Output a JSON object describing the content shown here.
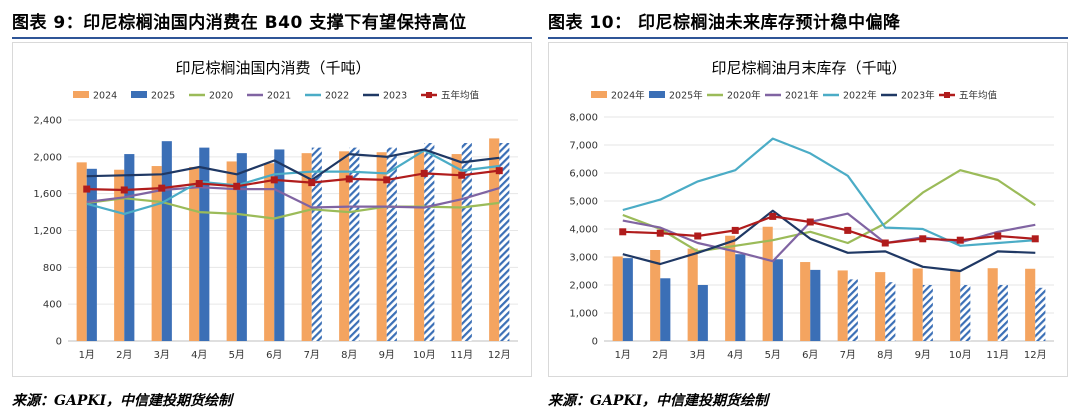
{
  "left": {
    "figure_title": "图表 9：印尼棕榈油国内消费在 B40 支撑下有望保持高位",
    "source": "来源：GAPKI，中信建投期货绘制"
  },
  "right": {
    "figure_title": "图表 10：  印尼棕榈油未来库存预计稳中偏降",
    "source": "来源：GAPKI，中信建投期货绘制"
  },
  "colors": {
    "title_rule": "#2f5597",
    "orange": "#f4a460",
    "blue": "#3b6fb6",
    "green": "#9bbb59",
    "purple": "#8064a2",
    "cyan": "#4bacc6",
    "navy": "#1f3864",
    "red": "#b01c1c",
    "gridline": "#e6e6e6"
  },
  "chart_data": [
    {
      "type": "bar",
      "title": "印尼棕榈油国内消费（千吨）",
      "categories": [
        "1月",
        "2月",
        "3月",
        "4月",
        "5月",
        "6月",
        "7月",
        "8月",
        "9月",
        "10月",
        "11月",
        "12月"
      ],
      "ylim": [
        0,
        2400
      ],
      "yticks": [
        0,
        400,
        800,
        1200,
        1600,
        2000,
        2400
      ],
      "ytick_labels": [
        "0",
        "400",
        "800",
        "1,200",
        "1,600",
        "2,000",
        "2,400"
      ],
      "grid": true,
      "legend_position": "top",
      "bar_series": [
        {
          "name": "2024",
          "color_key": "orange",
          "values": [
            1940,
            1860,
            1900,
            1890,
            1950,
            1930,
            2040,
            2060,
            2050,
            2060,
            2030,
            2200
          ],
          "hatched_from_index": 99
        },
        {
          "name": "2025",
          "color_key": "blue",
          "values": [
            1870,
            2030,
            2170,
            2100,
            2040,
            2080,
            2100,
            2100,
            2100,
            2150,
            2150,
            2150
          ],
          "hatched_from_index": 6
        }
      ],
      "line_series": [
        {
          "name": "2020",
          "color_key": "green",
          "values": [
            1500,
            1550,
            1510,
            1400,
            1380,
            1330,
            1430,
            1400,
            1460,
            1460,
            1450,
            1500
          ]
        },
        {
          "name": "2021",
          "color_key": "purple",
          "values": [
            1510,
            1560,
            1640,
            1670,
            1650,
            1650,
            1450,
            1460,
            1460,
            1450,
            1540,
            1660
          ]
        },
        {
          "name": "2022",
          "color_key": "cyan",
          "values": [
            1490,
            1380,
            1500,
            1730,
            1690,
            1810,
            1840,
            1840,
            1820,
            2070,
            1850,
            1900
          ]
        },
        {
          "name": "2023",
          "color_key": "navy",
          "values": [
            1790,
            1800,
            1810,
            1890,
            1810,
            1960,
            1750,
            2030,
            2000,
            2080,
            1940,
            1990
          ]
        },
        {
          "name": "五年均值",
          "color_key": "red",
          "marker": "square",
          "values": [
            1650,
            1640,
            1660,
            1710,
            1680,
            1750,
            1720,
            1760,
            1750,
            1820,
            1800,
            1850
          ]
        }
      ]
    },
    {
      "type": "bar",
      "title": "印尼棕榈油月末库存（千吨）",
      "categories": [
        "1月",
        "2月",
        "3月",
        "4月",
        "5月",
        "6月",
        "7月",
        "8月",
        "9月",
        "10月",
        "11月",
        "12月"
      ],
      "ylim": [
        0,
        8000
      ],
      "yticks": [
        0,
        1000,
        2000,
        3000,
        4000,
        5000,
        6000,
        7000,
        8000
      ],
      "ytick_labels": [
        "0",
        "1,000",
        "2,000",
        "3,000",
        "4,000",
        "5,000",
        "6,000",
        "7,000",
        "8,000"
      ],
      "grid": true,
      "legend_position": "top",
      "bar_series": [
        {
          "name": "2024年",
          "color_key": "orange",
          "values": [
            3020,
            3250,
            3300,
            3760,
            4080,
            2820,
            2520,
            2460,
            2590,
            2520,
            2600,
            2580
          ],
          "hatched_from_index": 99
        },
        {
          "name": "2025年",
          "color_key": "blue",
          "values": [
            2960,
            2240,
            2000,
            3100,
            2920,
            2540,
            2200,
            2100,
            2000,
            2000,
            2000,
            1900
          ],
          "hatched_from_index": 6
        }
      ],
      "line_series": [
        {
          "name": "2020年",
          "color_key": "green",
          "values": [
            4500,
            4000,
            3200,
            3400,
            3600,
            3900,
            3500,
            4200,
            5300,
            6100,
            5750,
            4850
          ]
        },
        {
          "name": "2021年",
          "color_key": "purple",
          "values": [
            4300,
            4050,
            3500,
            3200,
            2850,
            4250,
            4550,
            3500,
            3700,
            3520,
            3900,
            4150
          ]
        },
        {
          "name": "2022年",
          "color_key": "cyan",
          "values": [
            4680,
            5050,
            5700,
            6100,
            7230,
            6700,
            5900,
            4050,
            4000,
            3400,
            3500,
            3600
          ]
        },
        {
          "name": "2023年",
          "color_key": "navy",
          "values": [
            3100,
            2750,
            3150,
            3600,
            4650,
            3650,
            3150,
            3200,
            2650,
            2500,
            3200,
            3150
          ]
        },
        {
          "name": "五年均值",
          "color_key": "red",
          "marker": "square",
          "values": [
            3900,
            3850,
            3750,
            3950,
            4450,
            4250,
            3950,
            3500,
            3650,
            3600,
            3750,
            3650
          ]
        }
      ]
    }
  ]
}
